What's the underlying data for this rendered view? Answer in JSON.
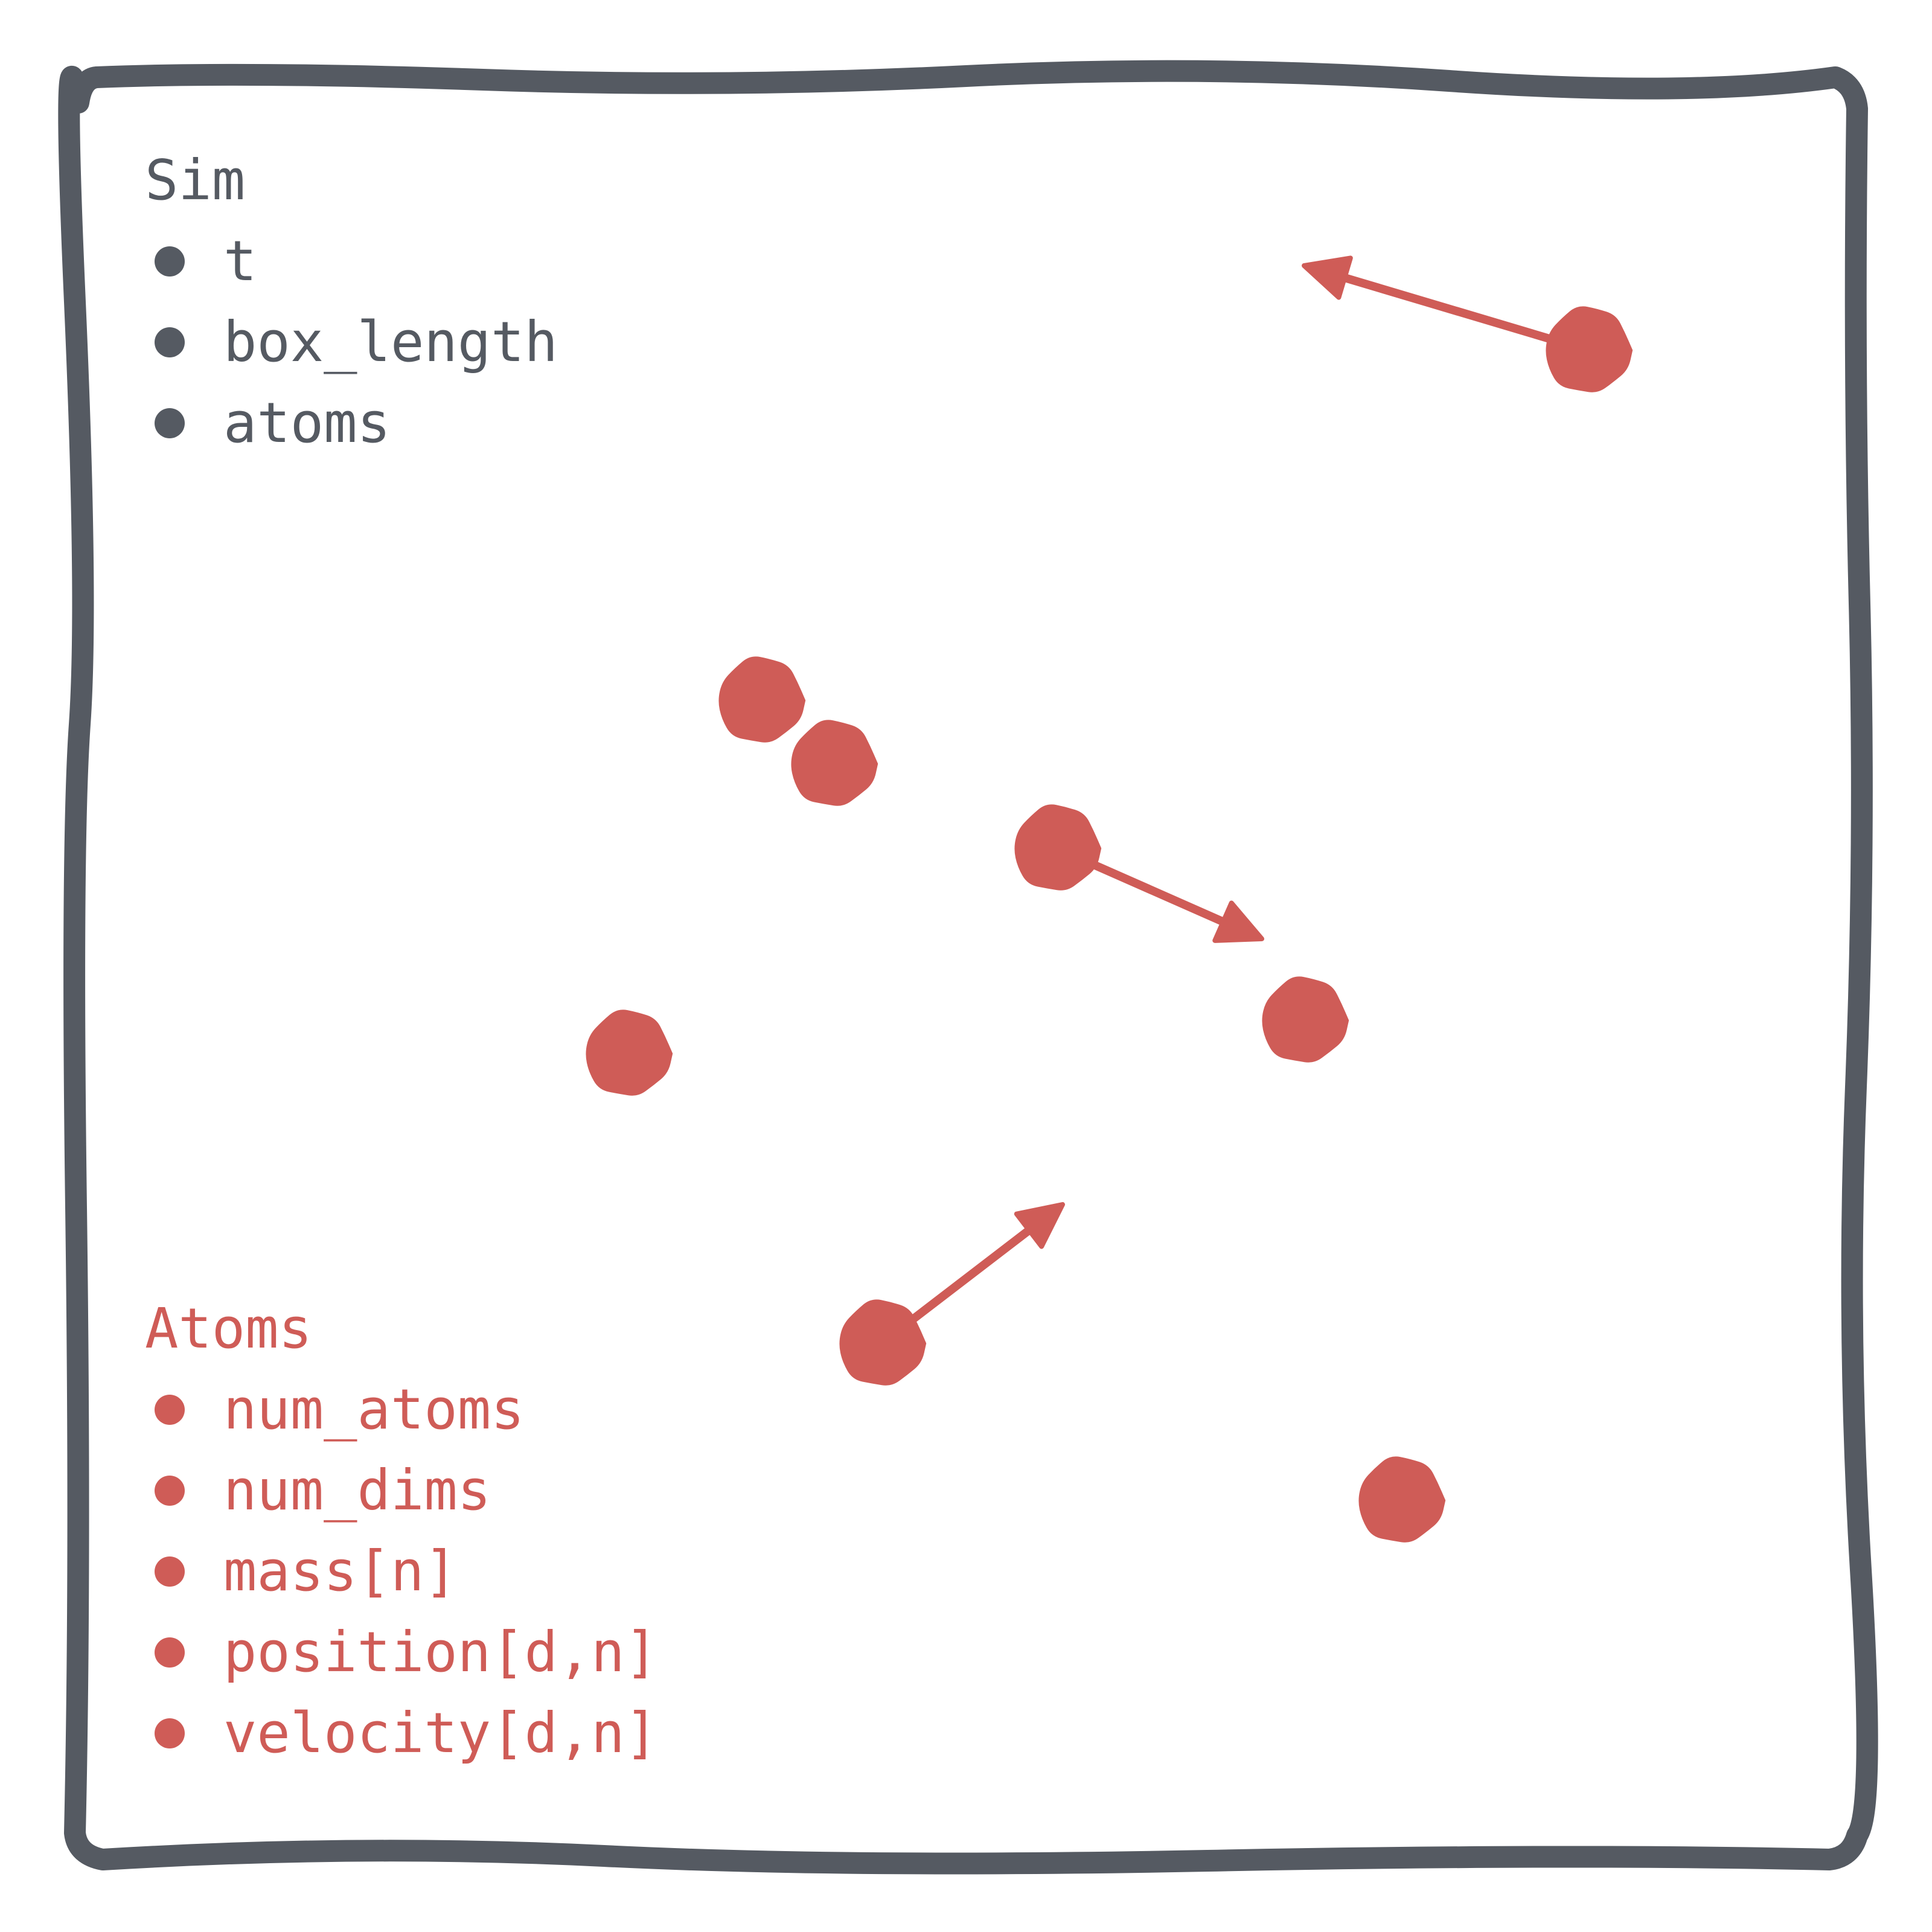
{
  "colors": {
    "frame": "#555a62",
    "atom": "#cf5c57",
    "background": "#ffffff"
  },
  "sim": {
    "title": "Sim",
    "fields": [
      "t",
      "box_length",
      "atoms"
    ]
  },
  "atoms": {
    "title": "Atoms",
    "fields": [
      "num_atoms",
      "num_dims",
      "mass[n]",
      "position[d,n]",
      "velocity[d,n]"
    ]
  },
  "particles": [
    {
      "name": "atom-1",
      "velocity_arrow": "up-left"
    },
    {
      "name": "atom-2",
      "velocity_arrow": "none"
    },
    {
      "name": "atom-3",
      "velocity_arrow": "none"
    },
    {
      "name": "atom-4",
      "velocity_arrow": "down-right"
    },
    {
      "name": "atom-5",
      "velocity_arrow": "none"
    },
    {
      "name": "atom-6",
      "velocity_arrow": "none"
    },
    {
      "name": "atom-7",
      "velocity_arrow": "up-right"
    },
    {
      "name": "atom-8",
      "velocity_arrow": "none"
    }
  ]
}
